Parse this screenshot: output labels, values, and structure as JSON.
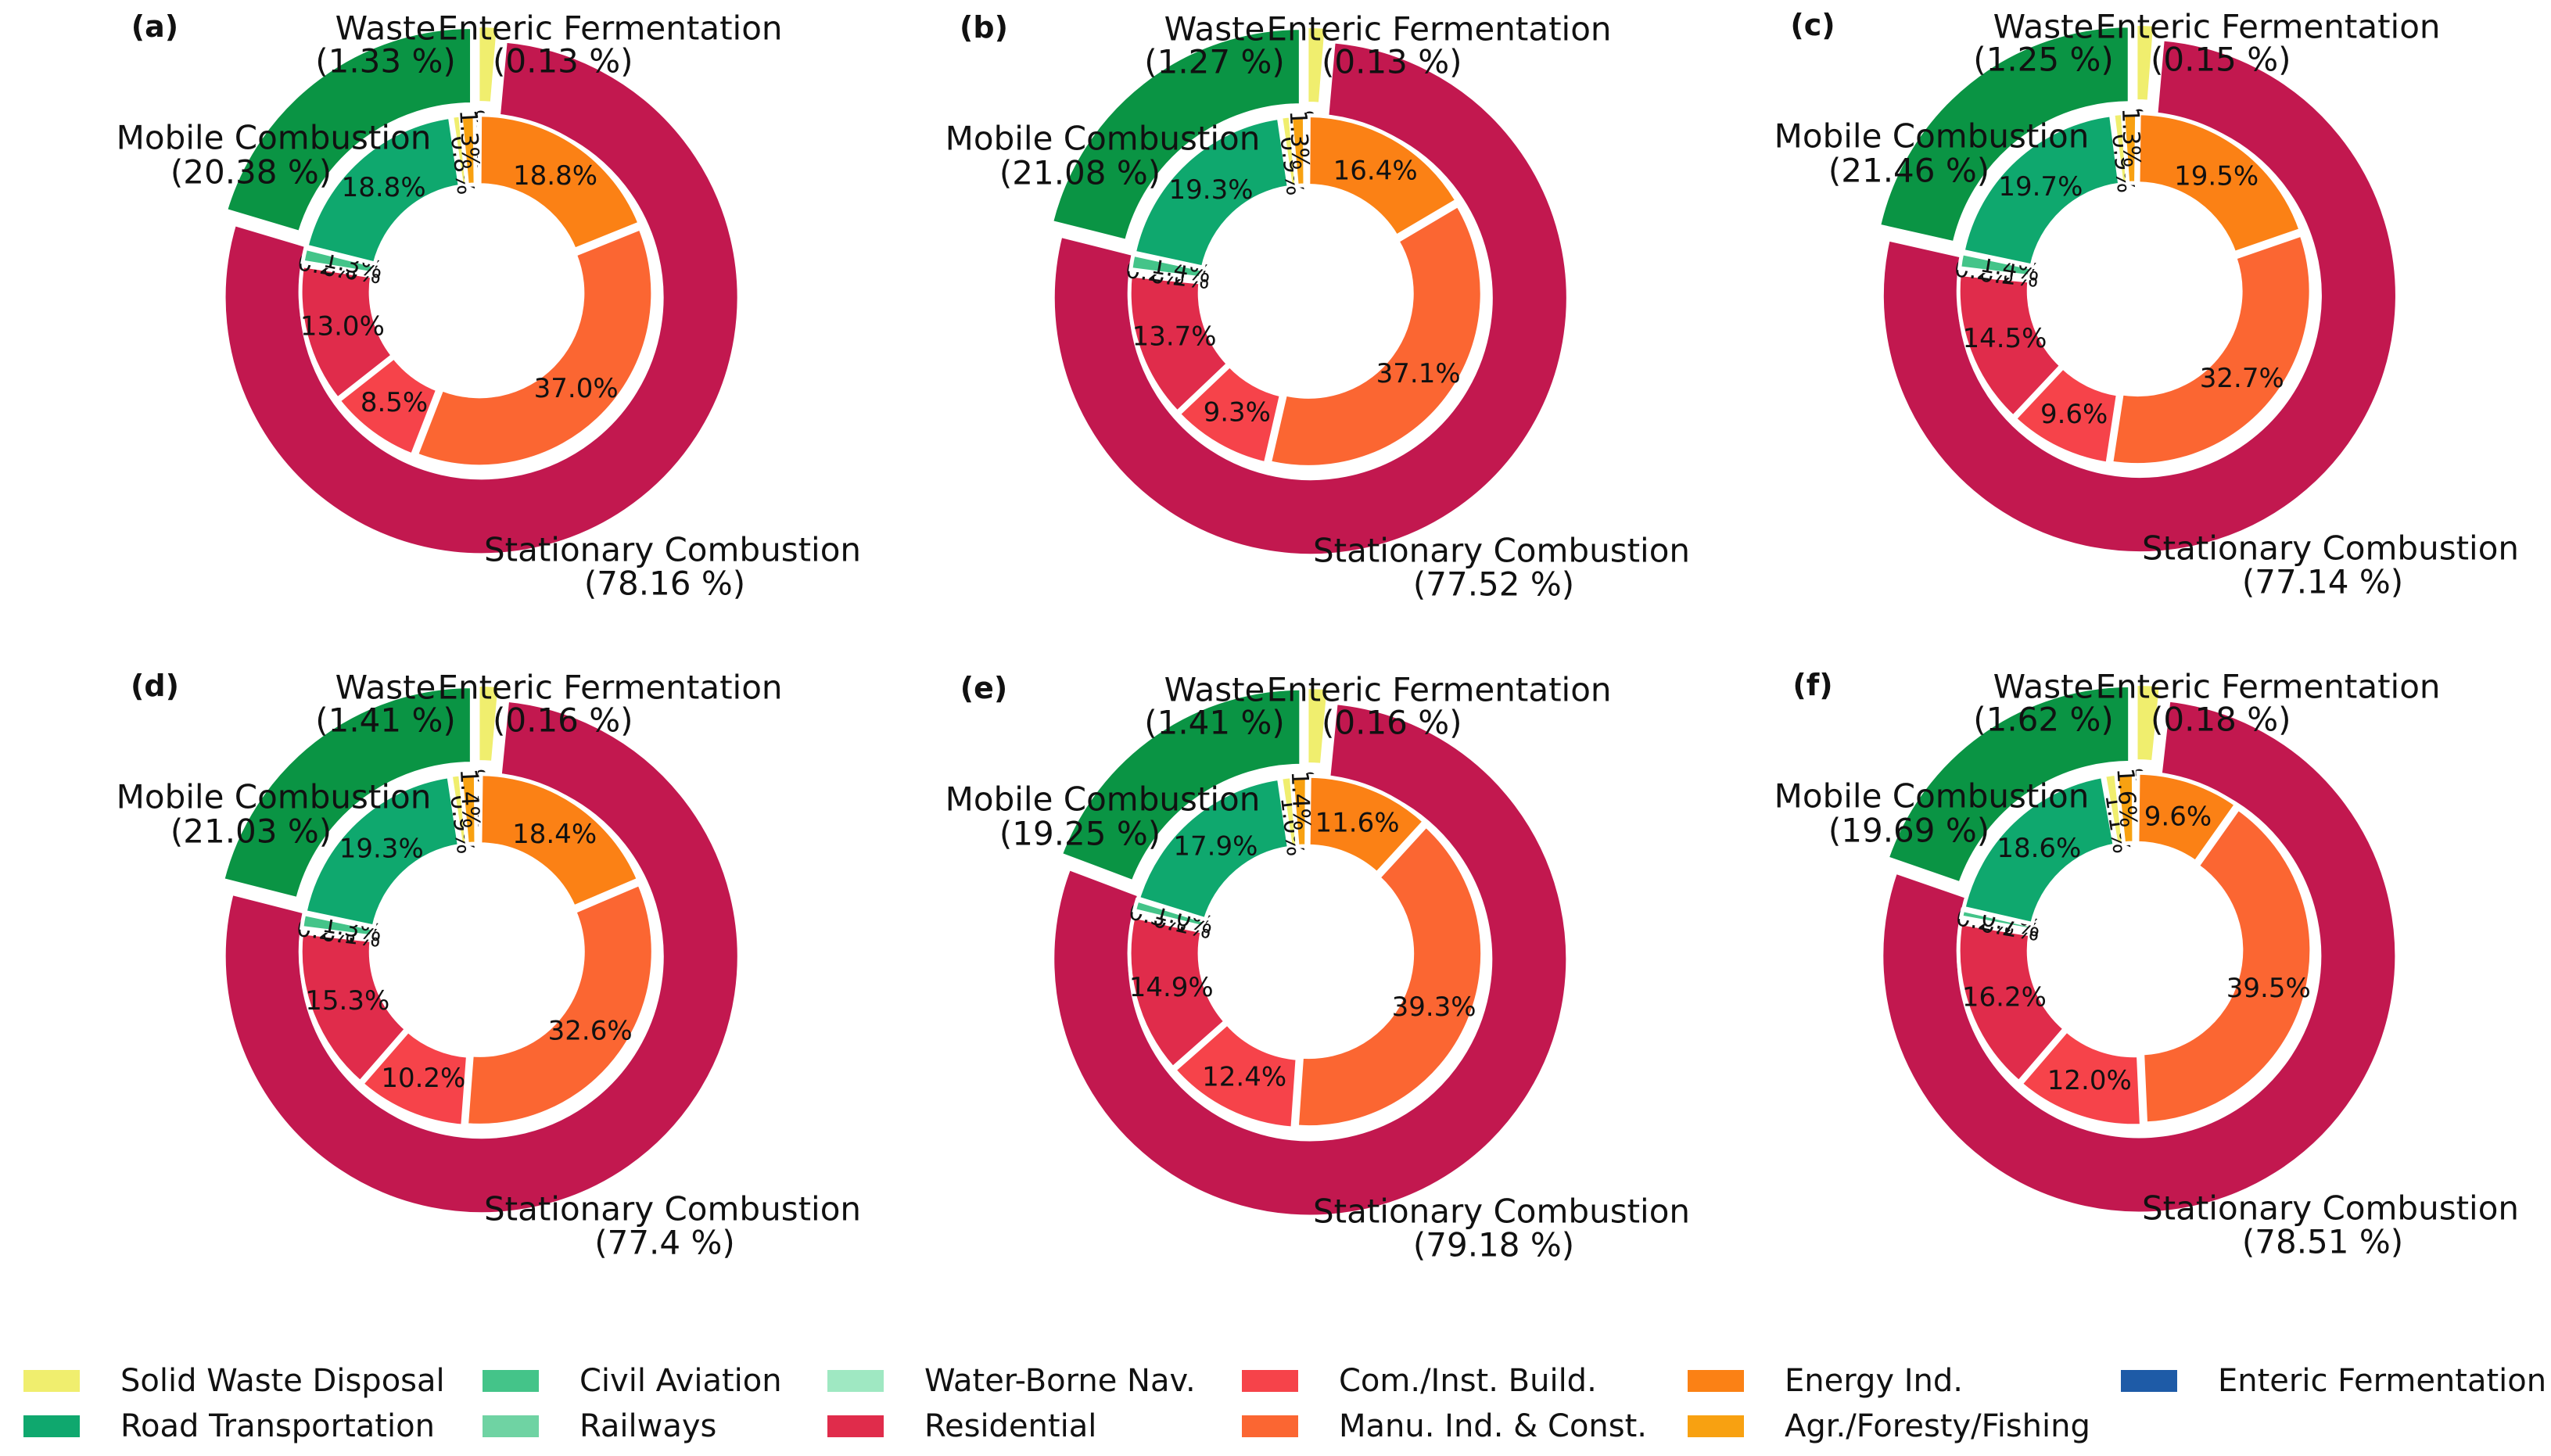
{
  "colors": {
    "waste": "#f0ee6e",
    "enteric_outer": "#ffffff",
    "mobile": "#0a9444",
    "stationary": "#c2184f",
    "Solid Waste Disposal": "#f0ee6e",
    "Road Transportation": "#0fa86e",
    "Civil Aviation": "#44c489",
    "Railways": "#6fd3a3",
    "Water-Borne Nav.": "#9fe8c2",
    "Residential": "#e02c4b",
    "Com./Inst. Build.": "#f6434a",
    "Manu. Ind. & Const.": "#fb6632",
    "Energy Ind.": "#fb8115",
    "Agr./Foresty/Fishing": "#f8a111",
    "Enteric Fermentation": "#1e5ba7"
  },
  "chart_data": [
    {
      "type": "nested-donut",
      "panel": "(a)",
      "outer": [
        {
          "name": "Waste",
          "pct": 1.33,
          "label": "(1.33 %)"
        },
        {
          "name": "Enteric Fermentation",
          "pct": 0.13,
          "label": "(0.13 %)"
        },
        {
          "name": "Stationary Combustion",
          "pct": 78.16,
          "label": "(78.16 %)"
        },
        {
          "name": "Mobile Combustion",
          "pct": 20.38,
          "label": "(20.38 %)"
        }
      ],
      "inner": [
        {
          "name": "Enteric Fermentation",
          "pct": 0.1,
          "label": "0.1%"
        },
        {
          "name": "Energy Ind.",
          "pct": 18.8,
          "label": "18.8%"
        },
        {
          "name": "Manu. Ind. & Const.",
          "pct": 37.0,
          "label": "37.0%"
        },
        {
          "name": "Com./Inst. Build.",
          "pct": 8.5,
          "label": "8.5%"
        },
        {
          "name": "Residential",
          "pct": 13.0,
          "label": "13.0%"
        },
        {
          "name": "Water-Borne Nav.",
          "pct": 0.0,
          "label": "0.0%"
        },
        {
          "name": "Railways",
          "pct": 0.2,
          "label": "0.2%"
        },
        {
          "name": "Civil Aviation",
          "pct": 1.3,
          "label": "1.3%"
        },
        {
          "name": "Road Transportation",
          "pct": 18.8,
          "label": "18.8%"
        },
        {
          "name": "Solid Waste Disposal",
          "pct": 0.8,
          "label": "0.8%"
        },
        {
          "name": "Agr./Foresty/Fishing",
          "pct": 1.3,
          "label": "1.3%"
        }
      ]
    },
    {
      "type": "nested-donut",
      "panel": "(b)",
      "outer": [
        {
          "name": "Waste",
          "pct": 1.27,
          "label": "(1.27 %)"
        },
        {
          "name": "Enteric Fermentation",
          "pct": 0.13,
          "label": "(0.13 %)"
        },
        {
          "name": "Stationary Combustion",
          "pct": 77.52,
          "label": "(77.52 %)"
        },
        {
          "name": "Mobile Combustion",
          "pct": 21.08,
          "label": "(21.08 %)"
        }
      ],
      "inner": [
        {
          "name": "Enteric Fermentation",
          "pct": 0.1,
          "label": "0.1%"
        },
        {
          "name": "Energy Ind.",
          "pct": 16.4,
          "label": "16.4%"
        },
        {
          "name": "Manu. Ind. & Const.",
          "pct": 37.1,
          "label": "37.1%"
        },
        {
          "name": "Com./Inst. Build.",
          "pct": 9.3,
          "label": "9.3%"
        },
        {
          "name": "Residential",
          "pct": 13.7,
          "label": "13.7%"
        },
        {
          "name": "Water-Borne Nav.",
          "pct": 0.2,
          "label": "0.2%"
        },
        {
          "name": "Railways",
          "pct": 0.2,
          "label": "0.2%"
        },
        {
          "name": "Civil Aviation",
          "pct": 1.4,
          "label": "1.4%"
        },
        {
          "name": "Road Transportation",
          "pct": 19.3,
          "label": "19.3%"
        },
        {
          "name": "Solid Waste Disposal",
          "pct": 0.9,
          "label": "0.9%"
        },
        {
          "name": "Agr./Foresty/Fishing",
          "pct": 1.3,
          "label": "1.3%"
        }
      ]
    },
    {
      "type": "nested-donut",
      "panel": "(c)",
      "outer": [
        {
          "name": "Waste",
          "pct": 1.25,
          "label": "(1.25 %)"
        },
        {
          "name": "Enteric Fermentation",
          "pct": 0.15,
          "label": "(0.15 %)"
        },
        {
          "name": "Stationary Combustion",
          "pct": 77.14,
          "label": "(77.14 %)"
        },
        {
          "name": "Mobile Combustion",
          "pct": 21.46,
          "label": "(21.46 %)"
        }
      ],
      "inner": [
        {
          "name": "Enteric Fermentation",
          "pct": 0.2,
          "label": "0.2%"
        },
        {
          "name": "Energy Ind.",
          "pct": 19.5,
          "label": "19.5%"
        },
        {
          "name": "Manu. Ind. & Const.",
          "pct": 32.7,
          "label": "32.7%"
        },
        {
          "name": "Com./Inst. Build.",
          "pct": 9.6,
          "label": "9.6%"
        },
        {
          "name": "Residential",
          "pct": 14.5,
          "label": "14.5%"
        },
        {
          "name": "Water-Borne Nav.",
          "pct": 0.2,
          "label": "0.2%"
        },
        {
          "name": "Railways",
          "pct": 0.2,
          "label": "0.2%"
        },
        {
          "name": "Civil Aviation",
          "pct": 1.4,
          "label": "1.4%"
        },
        {
          "name": "Road Transportation",
          "pct": 19.7,
          "label": "19.7%"
        },
        {
          "name": "Solid Waste Disposal",
          "pct": 0.9,
          "label": "0.9%"
        },
        {
          "name": "Agr./Foresty/Fishing",
          "pct": 1.3,
          "label": "1.3%"
        }
      ]
    },
    {
      "type": "nested-donut",
      "panel": "(d)",
      "outer": [
        {
          "name": "Waste",
          "pct": 1.41,
          "label": "(1.41 %)"
        },
        {
          "name": "Enteric Fermentation",
          "pct": 0.16,
          "label": "(0.16 %)"
        },
        {
          "name": "Stationary Combustion",
          "pct": 77.4,
          "label": "(77.4 %)"
        },
        {
          "name": "Mobile Combustion",
          "pct": 21.03,
          "label": "(21.03 %)"
        }
      ],
      "inner": [
        {
          "name": "Enteric Fermentation",
          "pct": 0.2,
          "label": "0.2%"
        },
        {
          "name": "Energy Ind.",
          "pct": 18.4,
          "label": "18.4%"
        },
        {
          "name": "Manu. Ind. & Const.",
          "pct": 32.6,
          "label": "32.6%"
        },
        {
          "name": "Com./Inst. Build.",
          "pct": 10.2,
          "label": "10.2%"
        },
        {
          "name": "Residential",
          "pct": 15.3,
          "label": "15.3%"
        },
        {
          "name": "Water-Borne Nav.",
          "pct": 0.1,
          "label": "0.1%"
        },
        {
          "name": "Railways",
          "pct": 0.2,
          "label": "0.2%"
        },
        {
          "name": "Civil Aviation",
          "pct": 1.3,
          "label": "1.3%"
        },
        {
          "name": "Road Transportation",
          "pct": 19.3,
          "label": "19.3%"
        },
        {
          "name": "Solid Waste Disposal",
          "pct": 0.9,
          "label": "0.9%"
        },
        {
          "name": "Agr./Foresty/Fishing",
          "pct": 1.4,
          "label": "1.4%"
        }
      ]
    },
    {
      "type": "nested-donut",
      "panel": "(e)",
      "outer": [
        {
          "name": "Waste",
          "pct": 1.41,
          "label": "(1.41 %)"
        },
        {
          "name": "Enteric Fermentation",
          "pct": 0.16,
          "label": "(0.16 %)"
        },
        {
          "name": "Stationary Combustion",
          "pct": 79.18,
          "label": "(79.18 %)"
        },
        {
          "name": "Mobile Combustion",
          "pct": 19.25,
          "label": "(19.25 %)"
        }
      ],
      "inner": [
        {
          "name": "Enteric Fermentation",
          "pct": 0.2,
          "label": "0.2%"
        },
        {
          "name": "Energy Ind.",
          "pct": 11.6,
          "label": "11.6%"
        },
        {
          "name": "Manu. Ind. & Const.",
          "pct": 39.3,
          "label": "39.3%"
        },
        {
          "name": "Com./Inst. Build.",
          "pct": 12.4,
          "label": "12.4%"
        },
        {
          "name": "Residential",
          "pct": 14.9,
          "label": "14.9%"
        },
        {
          "name": "Water-Borne Nav.",
          "pct": 0.1,
          "label": "0.1%"
        },
        {
          "name": "Railways",
          "pct": 0.3,
          "label": "0.3%"
        },
        {
          "name": "Civil Aviation",
          "pct": 1.0,
          "label": "1.0%"
        },
        {
          "name": "Road Transportation",
          "pct": 17.9,
          "label": "17.9%"
        },
        {
          "name": "Solid Waste Disposal",
          "pct": 1.0,
          "label": "1.0%"
        },
        {
          "name": "Agr./Foresty/Fishing",
          "pct": 1.4,
          "label": "1.4%"
        }
      ]
    },
    {
      "type": "nested-donut",
      "panel": "(f)",
      "outer": [
        {
          "name": "Waste",
          "pct": 1.62,
          "label": "(1.62 %)"
        },
        {
          "name": "Enteric Fermentation",
          "pct": 0.18,
          "label": "(0.18 %)"
        },
        {
          "name": "Stationary Combustion",
          "pct": 78.51,
          "label": "(78.51 %)"
        },
        {
          "name": "Mobile Combustion",
          "pct": 19.69,
          "label": "(19.69 %)"
        }
      ],
      "inner": [
        {
          "name": "Enteric Fermentation",
          "pct": 0.2,
          "label": "0.2%"
        },
        {
          "name": "Energy Ind.",
          "pct": 9.6,
          "label": "9.6%"
        },
        {
          "name": "Manu. Ind. & Const.",
          "pct": 39.5,
          "label": "39.5%"
        },
        {
          "name": "Com./Inst. Build.",
          "pct": 12.0,
          "label": "12.0%"
        },
        {
          "name": "Residential",
          "pct": 16.2,
          "label": "16.2%"
        },
        {
          "name": "Water-Borne Nav.",
          "pct": 0.2,
          "label": "0.2%"
        },
        {
          "name": "Railways",
          "pct": 0.2,
          "label": "0.2%"
        },
        {
          "name": "Civil Aviation",
          "pct": 0.7,
          "label": "0.7%"
        },
        {
          "name": "Road Transportation",
          "pct": 18.6,
          "label": "18.6%"
        },
        {
          "name": "Solid Waste Disposal",
          "pct": 1.1,
          "label": "1.1%"
        },
        {
          "name": "Agr./Foresty/Fishing",
          "pct": 1.6,
          "label": "1.6%"
        }
      ]
    }
  ],
  "legend": [
    "Solid Waste Disposal",
    "Road Transportation",
    "Civil Aviation",
    "Railways",
    "Water-Borne Nav.",
    "Residential",
    "Com./Inst. Build.",
    "Manu. Ind. & Const.",
    "Energy Ind.",
    "Agr./Foresty/Fishing",
    "Enteric Fermentation"
  ]
}
